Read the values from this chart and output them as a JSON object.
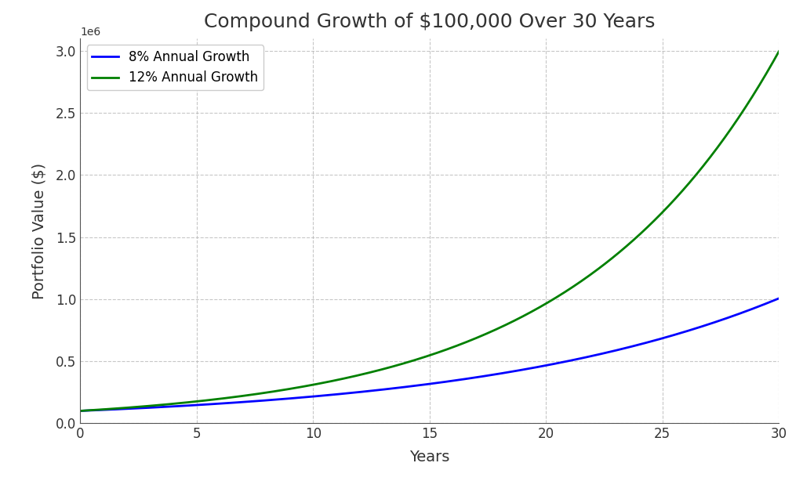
{
  "title": "Compound Growth of $100,000 Over 30 Years",
  "xlabel": "Years",
  "ylabel": "Portfolio Value ($)",
  "initial_value": 100000,
  "rate_8": 0.08,
  "rate_12": 0.12,
  "years": 30,
  "color_8": "#0000ff",
  "color_12": "#008000",
  "label_8": "8% Annual Growth",
  "label_12": "12% Annual Growth",
  "linewidth": 2.0,
  "background_color": "#ffffff",
  "grid_color": "#b0b0b0",
  "grid_linestyle": "--",
  "grid_alpha": 0.7,
  "xlim": [
    0,
    30
  ],
  "ylim": [
    0,
    3100000
  ],
  "title_fontsize": 18,
  "axis_label_fontsize": 14,
  "tick_fontsize": 12,
  "legend_fontsize": 12,
  "xticks": [
    0,
    5,
    10,
    15,
    20,
    25,
    30
  ],
  "yticks": [
    0,
    500000,
    1000000,
    1500000,
    2000000,
    2500000,
    3000000
  ]
}
